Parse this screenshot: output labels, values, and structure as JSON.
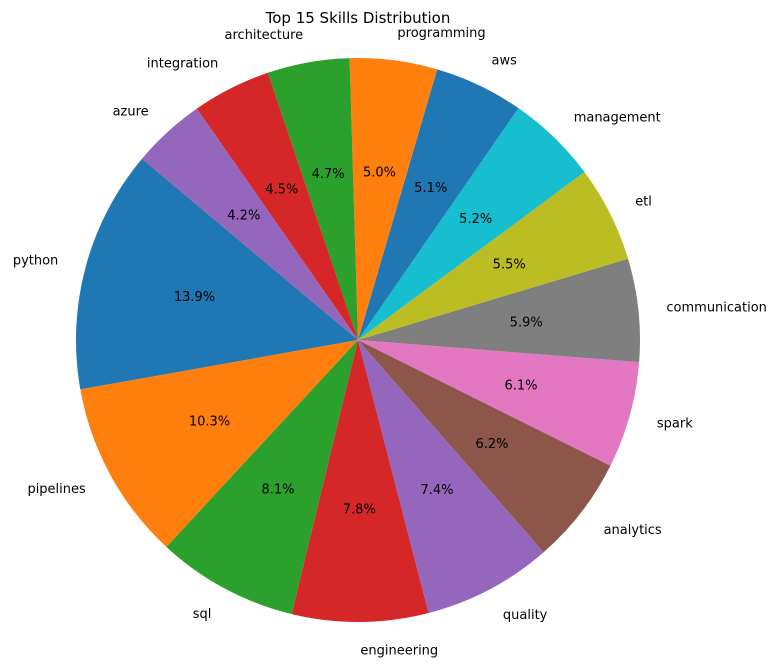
{
  "chart_data": {
    "type": "pie",
    "title": "Top 15 Skills Distribution",
    "start_angle_deg": 140,
    "direction": "counterclockwise",
    "slices": [
      {
        "label": "python",
        "value": 13.9,
        "pct_text": "13.9%",
        "color": "#1f77b4"
      },
      {
        "label": "pipelines",
        "value": 10.3,
        "pct_text": "10.3%",
        "color": "#ff7f0e"
      },
      {
        "label": "sql",
        "value": 8.1,
        "pct_text": "8.1%",
        "color": "#2ca02c"
      },
      {
        "label": "engineering",
        "value": 7.8,
        "pct_text": "7.8%",
        "color": "#d62728"
      },
      {
        "label": "quality",
        "value": 7.4,
        "pct_text": "7.4%",
        "color": "#9467bd"
      },
      {
        "label": "analytics",
        "value": 6.2,
        "pct_text": "6.2%",
        "color": "#8c564b"
      },
      {
        "label": "spark",
        "value": 6.1,
        "pct_text": "6.1%",
        "color": "#e377c2"
      },
      {
        "label": "communication",
        "value": 5.9,
        "pct_text": "5.9%",
        "color": "#7f7f7f"
      },
      {
        "label": "etl",
        "value": 5.5,
        "pct_text": "5.5%",
        "color": "#bcbd22"
      },
      {
        "label": "management",
        "value": 5.2,
        "pct_text": "5.2%",
        "color": "#17becf"
      },
      {
        "label": "aws",
        "value": 5.1,
        "pct_text": "5.1%",
        "color": "#1f77b4"
      },
      {
        "label": "programming",
        "value": 5.0,
        "pct_text": "5.0%",
        "color": "#ff7f0e"
      },
      {
        "label": "architecture",
        "value": 4.7,
        "pct_text": "4.7%",
        "color": "#2ca02c"
      },
      {
        "label": "integration",
        "value": 4.5,
        "pct_text": "4.5%",
        "color": "#d62728"
      },
      {
        "label": "azure",
        "value": 4.2,
        "pct_text": "4.2%",
        "color": "#9467bd"
      }
    ]
  }
}
